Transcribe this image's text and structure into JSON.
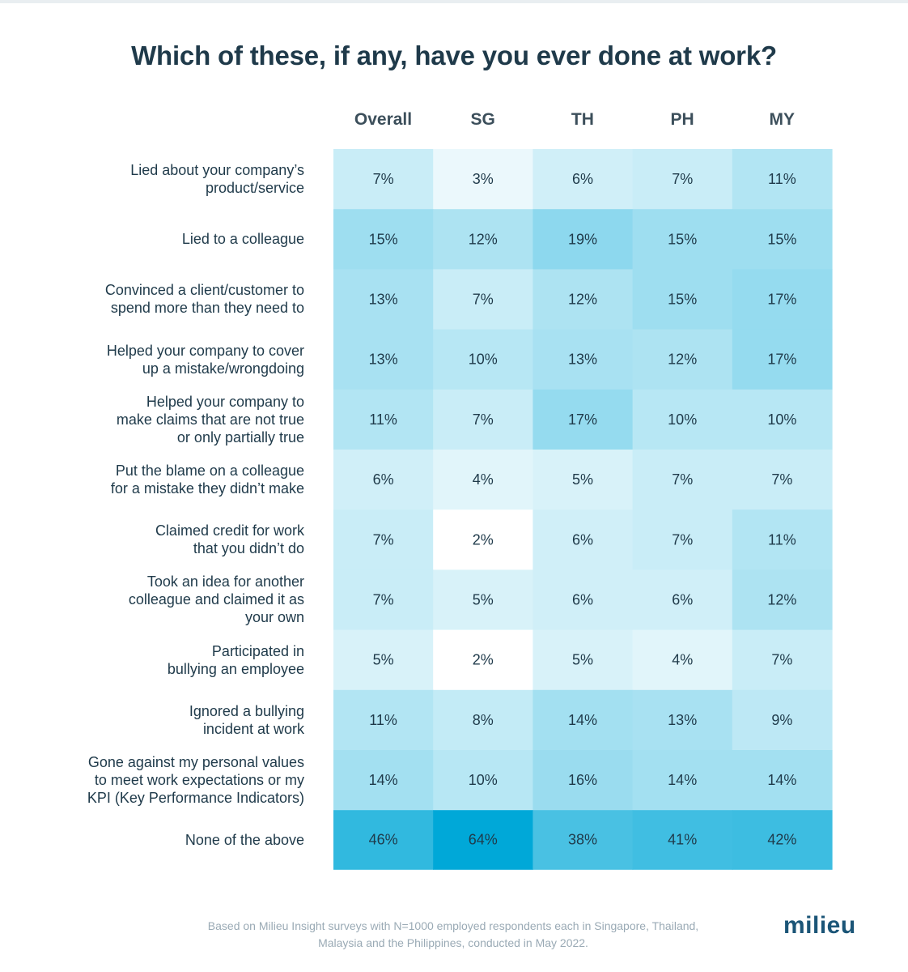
{
  "title": "Which of these, if any, have you ever done at work?",
  "footer": {
    "line1": "Based on Milieu Insight surveys with N=1000 employed respondents each in Singapore, Thailand,",
    "line2": "Malaysia and the Philippines, conducted in May 2022."
  },
  "logo": "milieu",
  "colors": {
    "low": "#ffffff",
    "high": "#00a8d8",
    "text": "#1f3a4a",
    "brand": "#1b5577"
  },
  "chart_data": {
    "type": "heatmap",
    "title": "Which of these, if any, have you ever done at work?",
    "columns": [
      "Overall",
      "SG",
      "TH",
      "PH",
      "MY"
    ],
    "value_suffix": "%",
    "color_range": [
      2,
      64
    ],
    "rows": [
      {
        "label_lines": [
          "Lied about your company’s",
          "product/service"
        ],
        "values": [
          7,
          3,
          6,
          7,
          11
        ]
      },
      {
        "label_lines": [
          "Lied to a colleague"
        ],
        "values": [
          15,
          12,
          19,
          15,
          15
        ]
      },
      {
        "label_lines": [
          "Convinced a client/customer to",
          "spend more than they need to"
        ],
        "values": [
          13,
          7,
          12,
          15,
          17
        ]
      },
      {
        "label_lines": [
          "Helped your company to cover",
          "up a mistake/wrongdoing"
        ],
        "values": [
          13,
          10,
          13,
          12,
          17
        ]
      },
      {
        "label_lines": [
          "Helped your company to",
          "make claims that are not true",
          "or only partially true"
        ],
        "values": [
          11,
          7,
          17,
          10,
          10
        ]
      },
      {
        "label_lines": [
          "Put the blame on a colleague",
          "for a mistake they didn’t make"
        ],
        "values": [
          6,
          4,
          5,
          7,
          7
        ]
      },
      {
        "label_lines": [
          "Claimed credit for work",
          "that you didn’t do"
        ],
        "values": [
          7,
          2,
          6,
          7,
          11
        ]
      },
      {
        "label_lines": [
          "Took an idea for another",
          "colleague and claimed it as",
          "your own"
        ],
        "values": [
          7,
          5,
          6,
          6,
          12
        ]
      },
      {
        "label_lines": [
          "Participated in",
          "bullying an employee"
        ],
        "values": [
          5,
          2,
          5,
          4,
          7
        ]
      },
      {
        "label_lines": [
          "Ignored a bullying",
          "incident at work"
        ],
        "values": [
          11,
          8,
          14,
          13,
          9
        ]
      },
      {
        "label_lines": [
          "Gone against my personal values",
          "to meet work expectations or my",
          "KPI (Key Performance Indicators)"
        ],
        "values": [
          14,
          10,
          16,
          14,
          14
        ]
      },
      {
        "label_lines": [
          "None of the above"
        ],
        "values": [
          46,
          64,
          38,
          41,
          42
        ]
      }
    ]
  }
}
